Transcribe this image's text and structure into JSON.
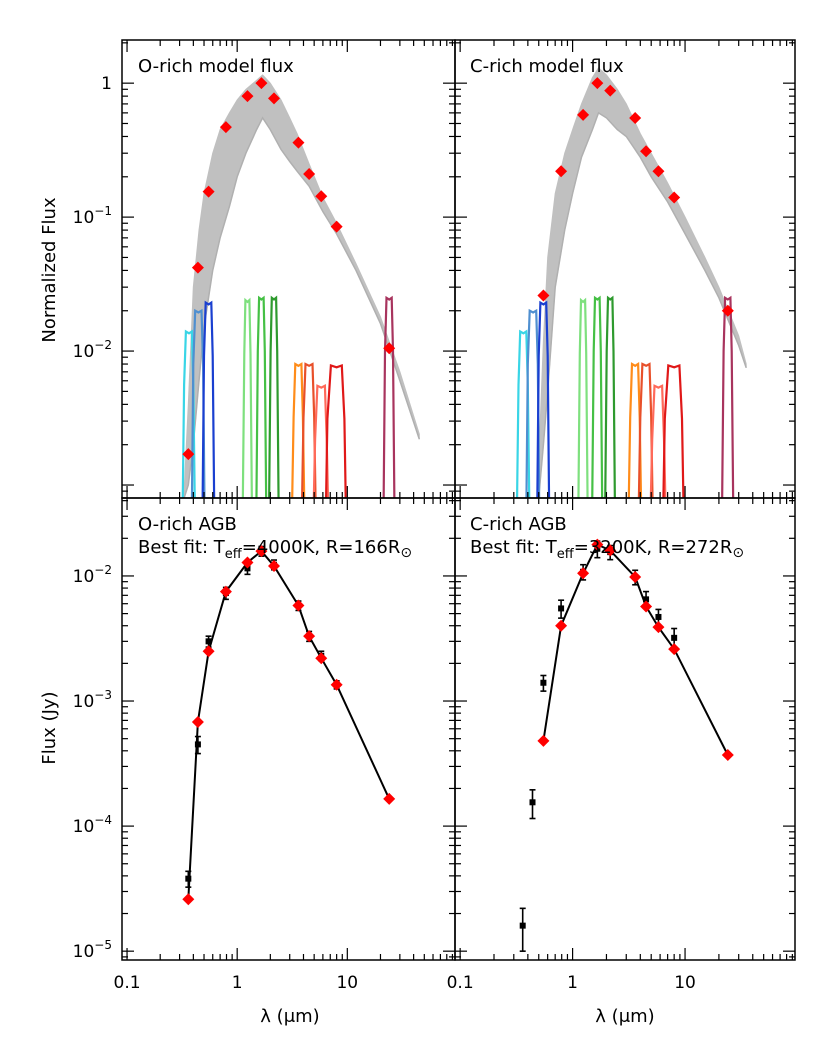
{
  "colors": {
    "model": "#c0c0c0",
    "photometry": "#ff0000",
    "observed": "#000000",
    "filters": [
      "#39d5e6",
      "#4f8fd0",
      "#1a3fd0",
      "#7ee07e",
      "#45c045",
      "#2e9a2e",
      "#ff8c1a",
      "#e8502a",
      "#ff6a5a",
      "#e01818",
      "#a8345e"
    ]
  },
  "axes": {
    "y_top_title": "Normalized Flux",
    "y_bottom_title": "Flux (Jy)",
    "x_title": "λ (μm)",
    "x_ticks": [
      {
        "v": 0.1,
        "label": "0.1"
      },
      {
        "v": 1,
        "label": "1"
      },
      {
        "v": 10,
        "label": "10"
      }
    ],
    "y_top_ticks": [
      {
        "v": 1,
        "base": "1",
        "exp": ""
      },
      {
        "v": 0.1,
        "base": "10",
        "exp": "−1"
      },
      {
        "v": 0.01,
        "base": "10",
        "exp": "−2"
      }
    ],
    "y_bottom_ticks": [
      {
        "v": 0.01,
        "base": "10",
        "exp": "−2"
      },
      {
        "v": 0.001,
        "base": "10",
        "exp": "−3"
      },
      {
        "v": 0.0001,
        "base": "10",
        "exp": "−4"
      },
      {
        "v": 1e-05,
        "base": "10",
        "exp": "−5"
      }
    ]
  },
  "panels": {
    "top_left": {
      "title": "O-rich model flux"
    },
    "top_right": {
      "title": "C-rich model flux"
    },
    "bottom_left": {
      "line1": "O-rich AGB",
      "fit_prefix": "Best fit: T",
      "teff_sub": "eff",
      "teff_value": "=4000K, R=166R",
      "sun_symbol": "⊙"
    },
    "bottom_right": {
      "line1": "C-rich AGB",
      "fit_prefix": "Best fit: T",
      "teff_sub": "eff",
      "teff_value": "=3200K, R=272R",
      "sun_symbol": "⊙"
    }
  },
  "chart_data": [
    {
      "type": "line",
      "panel": "top_left",
      "title": "O-rich model flux",
      "ylabel": "Normalized Flux",
      "xscale": "log",
      "yscale": "log",
      "xlim": [
        0.09,
        95
      ],
      "ylim": [
        0.0008,
        2.1
      ],
      "series": [
        {
          "x": [
            0.36,
            0.44,
            0.55,
            0.79,
            1.24,
            1.66,
            2.16,
            3.6,
            4.5,
            5.8,
            8.0,
            24.0
          ],
          "y": [
            0.0017,
            0.042,
            0.155,
            0.47,
            0.8,
            1.0,
            0.77,
            0.36,
            0.21,
            0.143,
            0.085,
            0.0105
          ]
        }
      ],
      "model_envelope": {
        "x": [
          0.33,
          0.36,
          0.4,
          0.45,
          0.5,
          0.6,
          0.7,
          0.85,
          1.0,
          1.2,
          1.5,
          1.7,
          2.0,
          2.5,
          3.0,
          3.5,
          4.5,
          6,
          8,
          12,
          20,
          30,
          45
        ],
        "upper": [
          0.0009,
          0.004,
          0.03,
          0.08,
          0.15,
          0.3,
          0.45,
          0.6,
          0.75,
          0.9,
          1.05,
          1.15,
          1.0,
          0.75,
          0.55,
          0.42,
          0.25,
          0.14,
          0.09,
          0.045,
          0.018,
          0.007,
          0.0024
        ],
        "lower": [
          0.0008,
          0.001,
          0.002,
          0.006,
          0.015,
          0.04,
          0.07,
          0.12,
          0.2,
          0.3,
          0.45,
          0.55,
          0.45,
          0.32,
          0.26,
          0.22,
          0.17,
          0.11,
          0.075,
          0.04,
          0.016,
          0.006,
          0.0022
        ]
      },
      "filters": [
        {
          "c": 0.365,
          "w": 0.035,
          "peak": 0.014
        },
        {
          "c": 0.445,
          "w": 0.045,
          "peak": 0.02
        },
        {
          "c": 0.55,
          "w": 0.05,
          "peak": 0.023
        },
        {
          "c": 1.24,
          "w": 0.08,
          "peak": 0.024
        },
        {
          "c": 1.66,
          "w": 0.12,
          "peak": 0.025
        },
        {
          "c": 2.16,
          "w": 0.15,
          "peak": 0.025
        },
        {
          "c": 3.6,
          "w": 0.35,
          "peak": 0.008
        },
        {
          "c": 4.5,
          "w": 0.5,
          "peak": 0.008
        },
        {
          "c": 5.8,
          "w": 0.7,
          "peak": 0.0055
        },
        {
          "c": 8.0,
          "w": 1.4,
          "peak": 0.0078
        },
        {
          "c": 24.0,
          "w": 2.0,
          "peak": 0.025
        }
      ]
    },
    {
      "type": "line",
      "panel": "top_right",
      "title": "C-rich model flux",
      "xscale": "log",
      "yscale": "log",
      "xlim": [
        0.09,
        95
      ],
      "ylim": [
        0.0008,
        2.1
      ],
      "series": [
        {
          "x": [
            0.55,
            0.79,
            1.24,
            1.66,
            2.16,
            3.6,
            4.5,
            5.8,
            8.0,
            24.0
          ],
          "y": [
            0.026,
            0.22,
            0.58,
            1.0,
            0.88,
            0.55,
            0.31,
            0.22,
            0.14,
            0.02
          ]
        }
      ],
      "model_envelope": {
        "x": [
          0.5,
          0.55,
          0.6,
          0.7,
          0.85,
          1.0,
          1.2,
          1.5,
          1.7,
          2.0,
          2.5,
          3.0,
          4.0,
          5.0,
          7,
          10,
          15,
          20,
          30,
          35
        ],
        "upper": [
          0.0015,
          0.012,
          0.05,
          0.15,
          0.3,
          0.45,
          0.7,
          1.1,
          1.3,
          1.15,
          0.9,
          0.7,
          0.42,
          0.3,
          0.18,
          0.1,
          0.05,
          0.03,
          0.013,
          0.008
        ],
        "lower": [
          0.0008,
          0.002,
          0.005,
          0.03,
          0.08,
          0.15,
          0.28,
          0.45,
          0.6,
          0.55,
          0.45,
          0.4,
          0.28,
          0.2,
          0.13,
          0.075,
          0.04,
          0.025,
          0.011,
          0.0075
        ]
      }
    },
    {
      "type": "scatter",
      "panel": "bottom_left",
      "ylabel": "Flux (Jy)",
      "xlabel": "λ (μm)",
      "xscale": "log",
      "yscale": "log",
      "xlim": [
        0.09,
        95
      ],
      "ylim": [
        8.5e-06,
        0.042
      ],
      "series": [
        {
          "name": "model",
          "x": [
            0.36,
            0.44,
            0.55,
            0.79,
            1.24,
            1.66,
            2.16,
            3.6,
            4.5,
            5.8,
            8.0,
            24.0
          ],
          "y": [
            2.6e-05,
            0.00068,
            0.0025,
            0.0075,
            0.0128,
            0.0158,
            0.012,
            0.0058,
            0.0033,
            0.0022,
            0.00135,
            0.000165
          ]
        },
        {
          "name": "observed",
          "x": [
            0.36,
            0.44,
            0.55,
            0.79,
            1.24,
            1.66,
            2.16,
            3.6,
            4.5,
            5.8,
            8.0
          ],
          "y": [
            3.8e-05,
            0.00045,
            0.003,
            0.0073,
            0.0115,
            0.0158,
            0.0123,
            0.0058,
            0.0033,
            0.0023,
            0.00135
          ],
          "err": [
            5.5e-06,
            7e-05,
            0.0003,
            0.0008,
            0.0012,
            0.0014,
            0.0011,
            0.0005,
            0.0003,
            0.0002,
            0.0001
          ]
        }
      ]
    },
    {
      "type": "scatter",
      "panel": "bottom_right",
      "xlabel": "λ (μm)",
      "xscale": "log",
      "yscale": "log",
      "xlim": [
        0.09,
        95
      ],
      "ylim": [
        8.5e-06,
        0.042
      ],
      "series": [
        {
          "name": "model",
          "x": [
            0.55,
            0.79,
            1.24,
            1.66,
            2.16,
            3.6,
            4.5,
            5.8,
            8.0,
            24.0
          ],
          "y": [
            0.00048,
            0.004,
            0.0105,
            0.0178,
            0.016,
            0.0098,
            0.0057,
            0.0039,
            0.0026,
            0.00037
          ]
        },
        {
          "name": "observed",
          "x": [
            0.36,
            0.44,
            0.55,
            0.79,
            1.24,
            1.66,
            2.16,
            3.6,
            4.5,
            5.8,
            8.0
          ],
          "y": [
            1.6e-05,
            0.000155,
            0.0014,
            0.0055,
            0.0108,
            0.0165,
            0.0155,
            0.0098,
            0.0065,
            0.0047,
            0.0032
          ],
          "err": [
            6e-06,
            4e-05,
            0.0002,
            0.0009,
            0.0015,
            0.0025,
            0.002,
            0.0013,
            0.001,
            0.0007,
            0.0006
          ]
        }
      ]
    }
  ]
}
